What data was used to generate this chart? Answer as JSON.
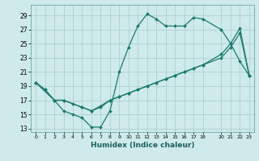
{
  "xlabel": "Humidex (Indice chaleur)",
  "bg_color": "#ceeaea",
  "grid_color": "#aed0d0",
  "line_color": "#1a7a6e",
  "line1_x": [
    0,
    1,
    2,
    3,
    4,
    5,
    6,
    7,
    8,
    9,
    10,
    11,
    12,
    13,
    14,
    15,
    16,
    17,
    18,
    20,
    21,
    22,
    23
  ],
  "line1_y": [
    19.5,
    18.5,
    17.0,
    15.5,
    15.0,
    14.5,
    13.2,
    13.2,
    15.5,
    21.0,
    24.5,
    27.5,
    29.2,
    28.5,
    27.5,
    27.5,
    27.5,
    28.7,
    28.5,
    27.0,
    25.0,
    22.5,
    20.5
  ],
  "line2_x": [
    0,
    1,
    2,
    3,
    4,
    5,
    6,
    7,
    8,
    9,
    10,
    11,
    12,
    13,
    14,
    15,
    16,
    17,
    18,
    20,
    21,
    22,
    23
  ],
  "line2_y": [
    19.5,
    18.5,
    17.0,
    17.0,
    16.5,
    16.0,
    15.5,
    16.2,
    17.0,
    17.5,
    18.0,
    18.5,
    19.0,
    19.5,
    20.0,
    20.5,
    21.0,
    21.5,
    22.0,
    23.5,
    25.0,
    27.2,
    20.5
  ],
  "line3_x": [
    0,
    2,
    3,
    5,
    6,
    7,
    8,
    9,
    10,
    11,
    12,
    13,
    14,
    15,
    16,
    17,
    18,
    20,
    21,
    22,
    23
  ],
  "line3_y": [
    19.5,
    17.0,
    17.0,
    16.0,
    15.5,
    16.0,
    17.0,
    17.5,
    18.0,
    18.5,
    19.0,
    19.5,
    20.0,
    20.5,
    21.0,
    21.5,
    22.0,
    23.0,
    24.5,
    26.5,
    20.5
  ],
  "xlim": [
    -0.5,
    23.5
  ],
  "ylim": [
    12.5,
    30.5
  ],
  "yticks": [
    13,
    15,
    17,
    19,
    21,
    23,
    25,
    27,
    29
  ],
  "xticks": [
    0,
    1,
    2,
    3,
    4,
    5,
    6,
    7,
    8,
    9,
    10,
    11,
    12,
    13,
    14,
    15,
    16,
    17,
    18,
    20,
    21,
    22,
    23
  ]
}
